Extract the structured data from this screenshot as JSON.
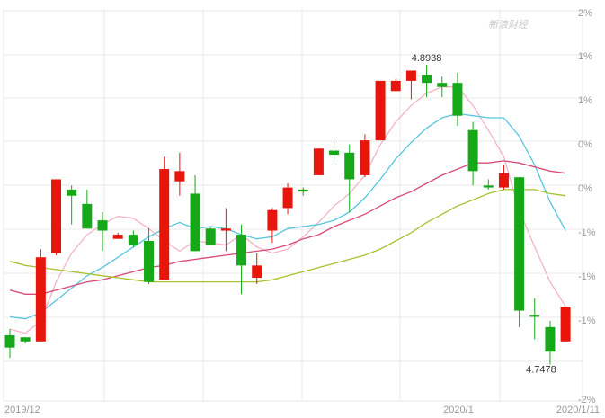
{
  "chart_data": {
    "type": "candlestick",
    "watermark": "新浪财经",
    "y_ticks_right": [
      "2%",
      "1%",
      "1%",
      "0%",
      "0%",
      "-1%",
      "-1%",
      "-1%",
      "-2%"
    ],
    "x_ticks": [
      "2019/12",
      "2020/1",
      "2020/1/11"
    ],
    "annotations": {
      "max": "4.8938",
      "min": "4.7478"
    },
    "ylim": [
      4.73,
      4.921
    ],
    "colors": {
      "up": "#e8150c",
      "down": "#15a818",
      "ma5": "#f3b3c6",
      "ma10": "#55c6de",
      "ma20": "#d64a7a",
      "ma30": "#a6c22e",
      "grid": "#e8e8e8"
    },
    "candles": [
      {
        "o": 4.762,
        "c": 4.756,
        "h": 4.765,
        "l": 4.751
      },
      {
        "o": 4.761,
        "c": 4.759,
        "h": 4.761,
        "l": 4.758
      },
      {
        "o": 4.759,
        "c": 4.8,
        "h": 4.804,
        "l": 4.759
      },
      {
        "o": 4.802,
        "c": 4.838,
        "h": 4.838,
        "l": 4.801
      },
      {
        "o": 4.833,
        "c": 4.83,
        "h": 4.835,
        "l": 4.816
      },
      {
        "o": 4.826,
        "c": 4.814,
        "h": 4.833,
        "l": 4.814
      },
      {
        "o": 4.818,
        "c": 4.813,
        "h": 4.822,
        "l": 4.803
      },
      {
        "o": 4.809,
        "c": 4.811,
        "h": 4.812,
        "l": 4.809
      },
      {
        "o": 4.811,
        "c": 4.806,
        "h": 4.813,
        "l": 4.805
      },
      {
        "o": 4.808,
        "c": 4.788,
        "h": 4.814,
        "l": 4.787
      },
      {
        "o": 4.789,
        "c": 4.843,
        "h": 4.849,
        "l": 4.789
      },
      {
        "o": 4.837,
        "c": 4.842,
        "h": 4.851,
        "l": 4.83
      },
      {
        "o": 4.831,
        "c": 4.803,
        "h": 4.84,
        "l": 4.803
      },
      {
        "o": 4.814,
        "c": 4.806,
        "h": 4.815,
        "l": 4.806
      },
      {
        "o": 4.813,
        "c": 4.814,
        "h": 4.824,
        "l": 4.803
      },
      {
        "o": 4.811,
        "c": 4.796,
        "h": 4.816,
        "l": 4.782
      },
      {
        "o": 4.79,
        "c": 4.796,
        "h": 4.802,
        "l": 4.787
      },
      {
        "o": 4.813,
        "c": 4.823,
        "h": 4.824,
        "l": 4.807
      },
      {
        "o": 4.824,
        "c": 4.834,
        "h": 4.836,
        "l": 4.821
      },
      {
        "o": 4.833,
        "c": 4.832,
        "h": 4.834,
        "l": 4.83
      },
      {
        "o": 4.84,
        "c": 4.853,
        "h": 4.853,
        "l": 4.84
      },
      {
        "o": 4.852,
        "c": 4.85,
        "h": 4.858,
        "l": 4.845
      },
      {
        "o": 4.851,
        "c": 4.838,
        "h": 4.855,
        "l": 4.822
      },
      {
        "o": 4.84,
        "c": 4.857,
        "h": 4.86,
        "l": 4.839
      },
      {
        "o": 4.857,
        "c": 4.886,
        "h": 4.886,
        "l": 4.857
      },
      {
        "o": 4.881,
        "c": 4.886,
        "h": 4.887,
        "l": 4.881
      },
      {
        "o": 4.886,
        "c": 4.891,
        "h": 4.891,
        "l": 4.877
      },
      {
        "o": 4.889,
        "c": 4.885,
        "h": 4.8938,
        "l": 4.878
      },
      {
        "o": 4.885,
        "c": 4.883,
        "h": 4.888,
        "l": 4.878
      },
      {
        "o": 4.885,
        "c": 4.869,
        "h": 4.89,
        "l": 4.864
      },
      {
        "o": 4.862,
        "c": 4.842,
        "h": 4.866,
        "l": 4.835
      },
      {
        "o": 4.835,
        "c": 4.834,
        "h": 4.838,
        "l": 4.833
      },
      {
        "o": 4.834,
        "c": 4.841,
        "h": 4.845,
        "l": 4.833
      },
      {
        "o": 4.839,
        "c": 4.774,
        "h": 4.839,
        "l": 4.766
      },
      {
        "o": 4.772,
        "c": 4.771,
        "h": 4.78,
        "l": 4.76
      },
      {
        "o": 4.766,
        "c": 4.754,
        "h": 4.769,
        "l": 4.7478
      },
      {
        "o": 4.759,
        "c": 4.776,
        "h": 4.776,
        "l": 4.759
      }
    ],
    "series": [
      {
        "key": "ma5",
        "values": [
          4.765,
          4.763,
          4.769,
          4.788,
          4.802,
          4.811,
          4.816,
          4.82,
          4.819,
          4.814,
          4.808,
          4.803,
          4.808,
          4.807,
          4.806,
          4.811,
          4.805,
          4.802,
          4.804,
          4.81,
          4.817,
          4.825,
          4.831,
          4.84,
          4.855,
          4.866,
          4.874,
          4.88,
          4.883,
          4.883,
          4.874,
          4.862,
          4.849,
          4.823,
          4.805,
          4.788,
          4.776
        ]
      },
      {
        "key": "ma10",
        "values": [
          4.771,
          4.77,
          4.773,
          4.779,
          4.785,
          4.791,
          4.795,
          4.8,
          4.805,
          4.81,
          4.814,
          4.817,
          4.814,
          4.815,
          4.814,
          4.811,
          4.809,
          4.81,
          4.814,
          4.815,
          4.816,
          4.818,
          4.822,
          4.829,
          4.838,
          4.848,
          4.856,
          4.863,
          4.868,
          4.87,
          4.869,
          4.868,
          4.868,
          4.859,
          4.845,
          4.827,
          4.813
        ]
      },
      {
        "key": "ma20",
        "values": [
          4.784,
          4.782,
          4.782,
          4.784,
          4.786,
          4.788,
          4.789,
          4.791,
          4.793,
          4.795,
          4.796,
          4.798,
          4.799,
          4.8,
          4.801,
          4.802,
          4.803,
          4.804,
          4.806,
          4.809,
          4.811,
          4.815,
          4.818,
          4.821,
          4.825,
          4.829,
          4.832,
          4.836,
          4.84,
          4.843,
          4.846,
          4.846,
          4.847,
          4.846,
          4.844,
          4.842,
          4.841
        ]
      },
      {
        "key": "ma30",
        "values": [
          4.798,
          4.796,
          4.795,
          4.794,
          4.793,
          4.792,
          4.791,
          4.79,
          4.789,
          4.788,
          4.788,
          4.788,
          4.788,
          4.788,
          4.788,
          4.788,
          4.788,
          4.789,
          4.791,
          4.793,
          4.795,
          4.797,
          4.799,
          4.801,
          4.804,
          4.808,
          4.812,
          4.817,
          4.821,
          4.825,
          4.828,
          4.831,
          4.833,
          4.833,
          4.833,
          4.831,
          4.83
        ]
      }
    ]
  }
}
